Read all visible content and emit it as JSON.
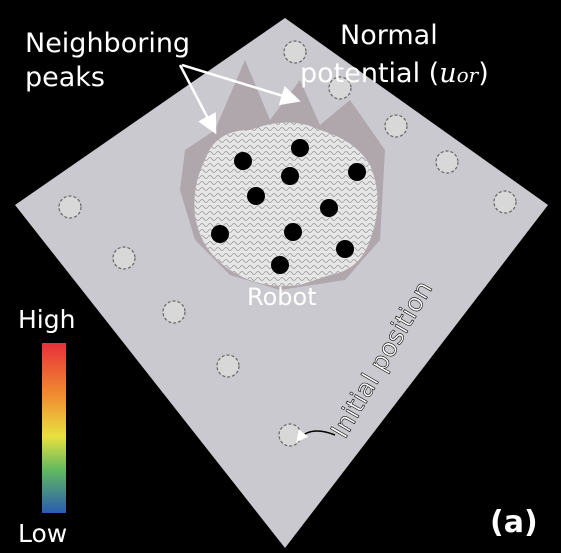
{
  "annotations": {
    "neighboring": [
      "Neighboring",
      "peaks"
    ],
    "normal": {
      "line1": "Normal",
      "line2": "potential (",
      "symbol": "u",
      "subscript": "or",
      "close": ")"
    },
    "robot": "Robot",
    "initial": "Initial position"
  },
  "colorbar": {
    "high": "High",
    "low": "Low"
  },
  "panel_label": "(a)"
}
